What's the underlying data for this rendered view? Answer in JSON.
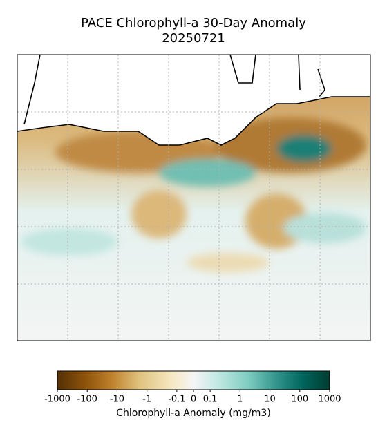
{
  "title": "PACE Chlorophyll-a 30-Day Anomaly",
  "date": "20250721",
  "colorbar": {
    "label": "Chlorophyll-a Anomaly (mg/m3)",
    "scale": "symlog",
    "linthresh": 0.1,
    "lim": [
      -1000,
      1000
    ],
    "ticks": [
      -1000,
      -100,
      -10,
      -1,
      -0.1,
      0,
      0.1,
      1,
      10,
      100,
      1000
    ]
  }
}
